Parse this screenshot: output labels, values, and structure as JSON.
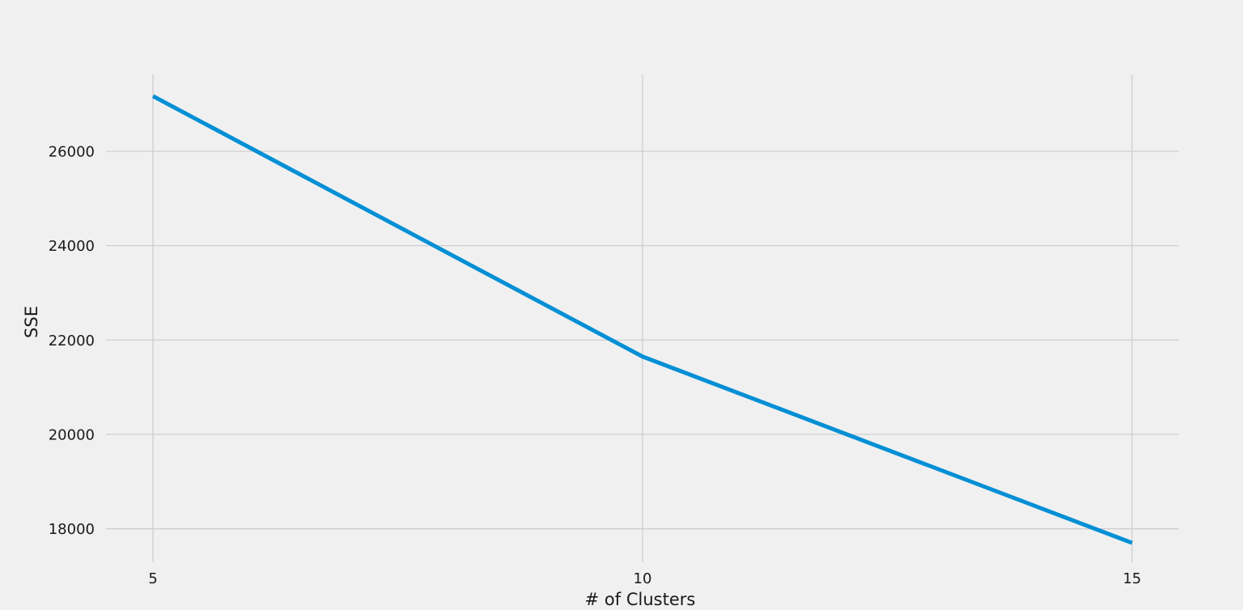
{
  "chart_data": {
    "type": "line",
    "title": "",
    "xlabel": "# of Clusters",
    "ylabel": "SSE",
    "x": [
      5,
      10,
      15
    ],
    "series": [
      {
        "values": [
          27170,
          21650,
          17700
        ]
      }
    ],
    "xticks": [
      "5",
      "10",
      "15"
    ],
    "yticks": [
      "18000",
      "20000",
      "22000",
      "24000",
      "26000"
    ],
    "xlim": [
      4.52,
      15.48
    ],
    "ylim": [
      17290,
      27630
    ],
    "grid": true,
    "colors": {
      "line": "#008fd5",
      "grid": "#cbcbcb",
      "background": "#f0f0f0",
      "text": "#1a1a1a"
    }
  }
}
